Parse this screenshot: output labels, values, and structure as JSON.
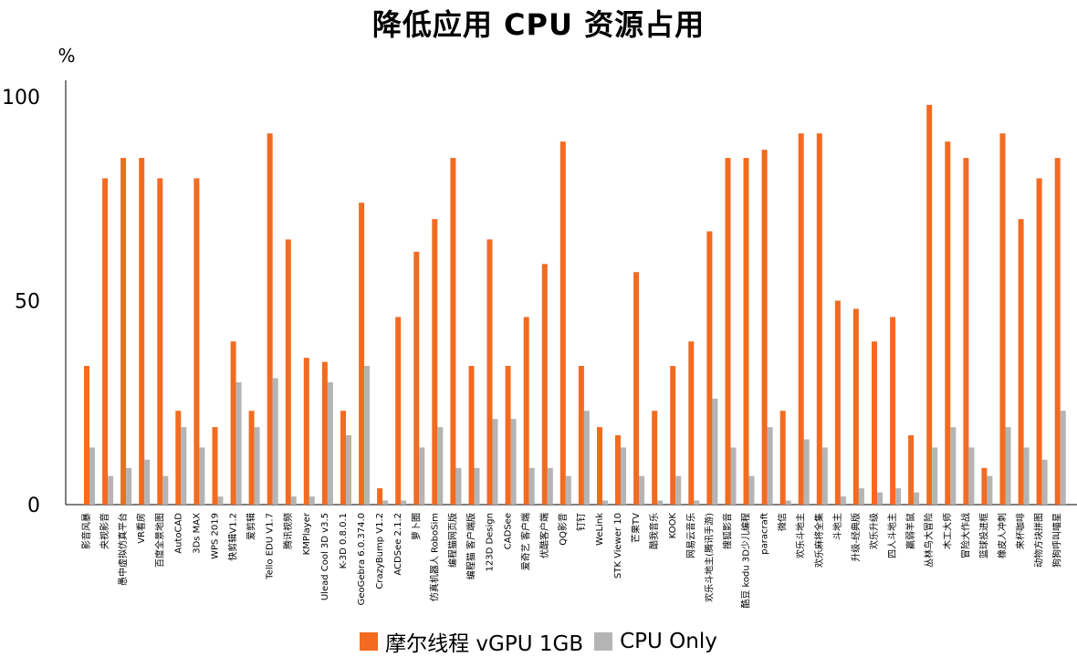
{
  "chart_data": {
    "type": "bar",
    "title": "降低应用 CPU 资源占用",
    "ylabel": "%",
    "xlabel": "",
    "ylim": [
      0,
      100
    ],
    "yticks": [
      0,
      50,
      100
    ],
    "grid": false,
    "legend_position": "bottom-center",
    "categories": [
      "影音风暴",
      "央视影音",
      "愚中虚拟仿真平台",
      "VR看房",
      "百度全景地图",
      "AutoCAD",
      "3Ds MAX",
      "WPS 2019",
      "快剪辑V1.2",
      "爱剪辑",
      "Tello EDU V1.7",
      "腾讯视频",
      "KMPlayer",
      "Ulead Cool 3D v3.5",
      "K-3D 0.8.0.1",
      "GeoGebra 6.0.374.0",
      "CrazyBump V1.2",
      "ACDSee 2.1.2",
      "萝卜圈",
      "仿真机器人 RoboSim",
      "编程猫网页版",
      "编程猫 客户端版",
      "123D Design",
      "CADSee",
      "爱奇艺 客户端",
      "优酷客户端",
      "QQ影音",
      "钉钉",
      "WeLink",
      "STK Viewer 10",
      "芒果TV",
      "酷我音乐",
      "KOOK",
      "网易云音乐",
      "欢乐斗地主(腾讯手游)",
      "搜狐影音",
      "酷豆 kodu 3D少儿编程",
      "paracraft",
      "微信",
      "欢乐斗地主",
      "欢乐麻将全集",
      "斗地主",
      "升级-经典版",
      "欢乐升级",
      "四人斗地主",
      "羸弱羊鼠",
      "丛林鸟大冒险",
      "木工大师",
      "冒险大作战",
      "篮球投进框",
      "橡皮人冲刺",
      "来杯咖啡",
      "动物方块拼图",
      "狗狗呼叫喵星"
    ],
    "series": [
      {
        "name": "摩尔线程 vGPU 1GB",
        "color": "#f26b21",
        "values": [
          34,
          80,
          85,
          85,
          80,
          23,
          80,
          19,
          40,
          23,
          91,
          65,
          36,
          35,
          23,
          74,
          4,
          46,
          62,
          70,
          85,
          34,
          65,
          34,
          46,
          59,
          89,
          34,
          19,
          17,
          57,
          23,
          34,
          40,
          67,
          85,
          85,
          87,
          23,
          91,
          91,
          50,
          48,
          40,
          46,
          17,
          98,
          89,
          85,
          9,
          91,
          70,
          80,
          85
        ]
      },
      {
        "name": "CPU Only",
        "color": "#b4b4b4",
        "values": [
          14,
          7,
          9,
          11,
          7,
          19,
          14,
          2,
          30,
          19,
          31,
          2,
          2,
          30,
          17,
          34,
          1,
          1,
          14,
          19,
          9,
          9,
          21,
          21,
          9,
          9,
          7,
          23,
          1,
          14,
          7,
          1,
          7,
          1,
          26,
          14,
          7,
          19,
          1,
          16,
          14,
          2,
          4,
          3,
          4,
          3,
          14,
          19,
          14,
          7,
          19,
          14,
          11,
          23
        ]
      }
    ]
  }
}
